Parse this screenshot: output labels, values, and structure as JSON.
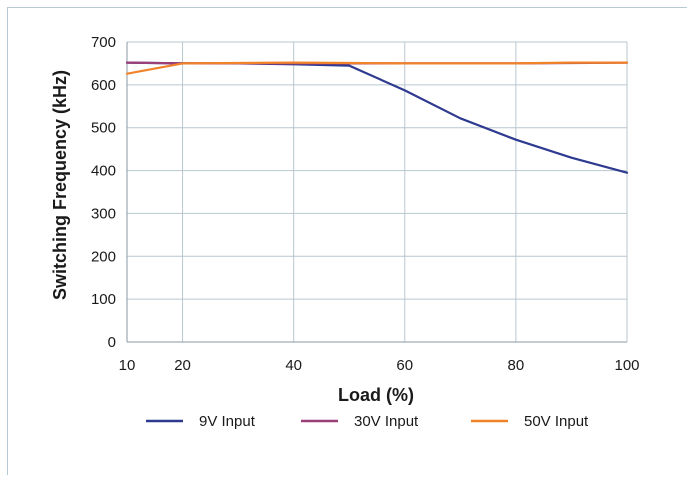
{
  "chart_data": {
    "type": "line",
    "title": "",
    "xlabel": "Load (%)",
    "ylabel": "Switching Frequency (kHz)",
    "xlim": [
      10,
      100
    ],
    "ylim": [
      0,
      700
    ],
    "xticks": [
      10,
      20,
      40,
      60,
      80,
      100
    ],
    "yticks": [
      0,
      100,
      200,
      300,
      400,
      500,
      600,
      700
    ],
    "grid": true,
    "legend_position": "bottom",
    "series": [
      {
        "name": "9V Input",
        "color": "#2e3a8f",
        "x": [
          10,
          20,
          30,
          40,
          50,
          60,
          70,
          80,
          90,
          100
        ],
        "y": [
          652,
          650,
          650,
          648,
          645,
          587,
          522,
          472,
          430,
          395
        ]
      },
      {
        "name": "30V Input",
        "color": "#9b3f78",
        "x": [
          10,
          20,
          30,
          40,
          50,
          60,
          70,
          80,
          90,
          100
        ],
        "y": [
          652,
          650,
          650,
          650,
          650,
          650,
          650,
          650,
          651,
          652
        ]
      },
      {
        "name": "50V Input",
        "color": "#f0822a",
        "x": [
          10,
          20,
          30,
          40,
          50,
          60,
          70,
          80,
          90,
          100
        ],
        "y": [
          626,
          650,
          651,
          652,
          651,
          650,
          650,
          650,
          652,
          652
        ]
      }
    ]
  }
}
